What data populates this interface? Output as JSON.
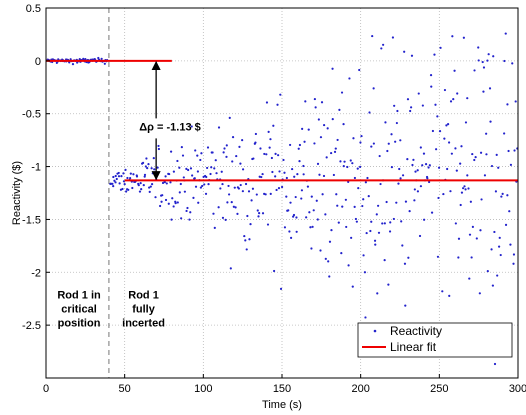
{
  "chart_data": {
    "type": "scatter",
    "title": "",
    "xlabel": "Time (s)",
    "ylabel": "Reactivity ($)",
    "xlim": [
      0,
      300
    ],
    "ylim": [
      -3,
      0.5
    ],
    "xticks": [
      0,
      50,
      100,
      150,
      200,
      250,
      300
    ],
    "yticks": [
      0.5,
      0,
      -0.5,
      -1,
      -1.5,
      -2,
      -2.5
    ],
    "grid": true,
    "legend_position": "bottom-right",
    "series": [
      {
        "name": "Reactivity",
        "kind": "points",
        "color": "#2222cc",
        "segments": [
          {
            "x_start": 1,
            "x_end": 39,
            "x_step": 0.5,
            "center": 0.0,
            "spread": 0.012,
            "spread_growth": 0.0
          },
          {
            "x_start": 41,
            "x_end": 300,
            "x_step": 0.5,
            "center": -1.13,
            "spread": 0.04,
            "spread_growth": 0.0033
          }
        ]
      },
      {
        "name": "Linear fit",
        "kind": "line",
        "color": "#ee0000",
        "segments": [
          {
            "x": [
              0,
              80
            ],
            "y": [
              0,
              0
            ]
          },
          {
            "x": [
              50,
              300
            ],
            "y": [
              -1.13,
              -1.13
            ]
          }
        ]
      }
    ],
    "reference_line": {
      "x": 40,
      "style": "dashed",
      "color": "#555555"
    },
    "annotations": [
      {
        "text": "Δρ = -1.13 $",
        "x": 72,
        "y": -0.62
      },
      {
        "lines": [
          "Rod 1 in",
          "critical",
          "position"
        ],
        "x": 21,
        "y": -2.25
      },
      {
        "lines": [
          "Rod 1",
          "fully",
          "incerted"
        ],
        "x": 62,
        "y": -2.25
      }
    ],
    "arrow": {
      "x": 70,
      "y_from": -0.62,
      "y_top": 0,
      "y_bottom": -1.13
    }
  }
}
